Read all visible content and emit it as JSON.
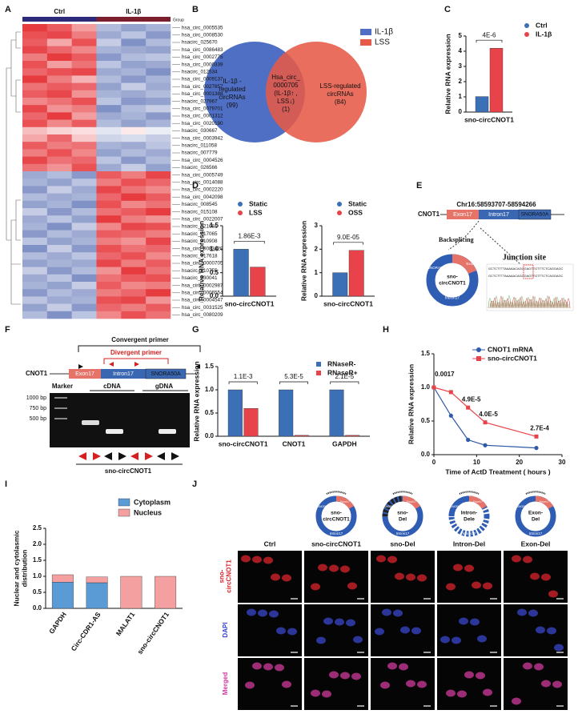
{
  "panel_labels": [
    "A",
    "B",
    "C",
    "D",
    "E",
    "F",
    "G",
    "H",
    "I",
    "J"
  ],
  "chart_data": [
    {
      "type": "heatmap",
      "groups": [
        "Ctrl",
        "IL-1β"
      ],
      "group_label": "Group",
      "group_colors": [
        "#2d2a7a",
        "#7a1f2b"
      ],
      "zlim": [
        -2,
        2
      ],
      "colors": [
        "#3c55a5",
        "#ffffff",
        "#e3262b"
      ],
      "rows": [
        "hsa_circ_0005535",
        "hsa_circ_0008530",
        "hsacirc_025670",
        "hsa_circ_0086483",
        "hsa_circ_0002775",
        "hsa_circ_0000339",
        "hsacirc_012534",
        "hsa_circ_0009137",
        "hsa_circ_0027857",
        "hsa_circ_0001388",
        "hsacirc_027967",
        "hsa_circ_0079701",
        "hsa_circ_0001312",
        "hsa_circ_0020190",
        "hsacirc_030667",
        "hsa_circ_0003942",
        "hsacirc_011058",
        "hsacirc_007779",
        "hsa_circ_0004526",
        "hsacirc_026566",
        "hsa_circ_0005749",
        "hsa_circ_0014088",
        "hsa_circ_0002220",
        "hsa_circ_0042098",
        "hsacirc_008545",
        "hsacirc_015108",
        "hsa_circ_0022007",
        "hsacirc_021681",
        "hsacirc_017065",
        "hsacirc_010908",
        "hsa_circ_0083429",
        "hsacirc_017618",
        "hsa_circ_0000705",
        "hsacirc_010755",
        "hsacirc_030041",
        "hsa_circ_0002987",
        "hsa_circ_0006554",
        "hsa_circ_0004547",
        "hsa_circ_0031525",
        "hsa_circ_0080209"
      ],
      "values": [
        [
          1.8,
          1.5,
          0.9,
          -0.8,
          -1.1,
          -0.9
        ],
        [
          1.6,
          1.7,
          1.2,
          -1.0,
          -0.7,
          -1.2
        ],
        [
          1.5,
          0.8,
          1.6,
          -0.6,
          -1.3,
          -0.8
        ],
        [
          1.7,
          1.4,
          1.1,
          -0.9,
          -1.0,
          -1.1
        ],
        [
          1.2,
          1.8,
          1.5,
          -1.2,
          -0.8,
          -0.7
        ],
        [
          1.6,
          0.9,
          1.3,
          -0.7,
          -1.1,
          -1.0
        ],
        [
          1.4,
          1.6,
          1.7,
          -1.0,
          -0.9,
          -1.3
        ],
        [
          1.8,
          1.2,
          0.7,
          -0.8,
          -1.2,
          -0.9
        ],
        [
          1.3,
          1.5,
          1.4,
          -1.1,
          -0.6,
          -1.0
        ],
        [
          1.5,
          1.7,
          1.0,
          -0.9,
          -1.0,
          -0.8
        ],
        [
          1.1,
          1.3,
          1.6,
          -0.7,
          -1.2,
          -1.1
        ],
        [
          1.7,
          1.0,
          1.2,
          -1.3,
          -0.8,
          -0.6
        ],
        [
          1.4,
          1.8,
          0.9,
          -1.0,
          -0.9,
          -1.2
        ],
        [
          1.6,
          1.1,
          1.5,
          -0.8,
          -1.1,
          -0.9
        ],
        [
          0.6,
          0.4,
          0.3,
          -0.3,
          0.2,
          -0.2
        ],
        [
          0.8,
          1.4,
          0.5,
          -0.5,
          -0.4,
          -0.6
        ],
        [
          1.5,
          1.2,
          1.3,
          -0.9,
          -1.0,
          -0.7
        ],
        [
          1.2,
          1.6,
          1.1,
          -1.1,
          -0.8,
          -1.0
        ],
        [
          1.7,
          1.3,
          1.4,
          -0.7,
          -1.2,
          -0.8
        ],
        [
          1.3,
          1.0,
          1.6,
          -1.0,
          -0.6,
          -1.1
        ],
        [
          -1.0,
          -0.8,
          -1.2,
          1.5,
          1.2,
          1.7
        ],
        [
          -0.9,
          -1.1,
          -0.7,
          1.2,
          1.6,
          1.4
        ],
        [
          -1.2,
          -0.6,
          -1.0,
          1.7,
          1.3,
          1.1
        ],
        [
          -0.8,
          -1.0,
          -0.9,
          1.4,
          1.8,
          1.5
        ],
        [
          -1.1,
          -0.9,
          -1.3,
          1.6,
          1.1,
          1.3
        ],
        [
          -0.6,
          -1.2,
          -0.8,
          1.3,
          1.5,
          1.8
        ],
        [
          -1.0,
          -0.7,
          -1.1,
          1.8,
          1.2,
          1.0
        ],
        [
          -0.9,
          -1.3,
          -0.6,
          1.1,
          1.7,
          1.6
        ],
        [
          -1.2,
          -0.8,
          -1.0,
          1.5,
          1.4,
          1.2
        ],
        [
          -0.7,
          -1.1,
          -0.9,
          1.2,
          1.0,
          1.7
        ],
        [
          -1.3,
          -0.6,
          -1.2,
          1.6,
          1.3,
          1.4
        ],
        [
          -0.8,
          -1.0,
          -0.7,
          1.4,
          1.6,
          1.1
        ],
        [
          -1.1,
          -0.9,
          -1.0,
          1.7,
          1.2,
          1.5
        ],
        [
          -0.6,
          -1.2,
          -0.8,
          1.0,
          1.8,
          1.3
        ],
        [
          -1.0,
          -0.7,
          -1.3,
          1.3,
          1.5,
          1.6
        ],
        [
          -0.9,
          -1.1,
          -0.6,
          1.5,
          1.1,
          1.2
        ],
        [
          -1.2,
          -0.8,
          -1.0,
          1.2,
          1.4,
          1.8
        ],
        [
          -0.7,
          -1.0,
          -0.9,
          1.6,
          1.7,
          1.0
        ],
        [
          -1.1,
          -0.6,
          -1.2,
          1.4,
          1.2,
          1.5
        ],
        [
          -0.8,
          -1.3,
          -0.7,
          1.1,
          1.6,
          1.3
        ]
      ]
    },
    {
      "type": "bar",
      "categories": [
        "sno-circCNOT1"
      ],
      "series": [
        {
          "name": "Ctrl",
          "color": "#3b6fb6",
          "values": [
            1.02
          ]
        },
        {
          "name": "IL-1β",
          "color": "#e8434a",
          "values": [
            4.2
          ]
        }
      ],
      "ylabel": "Relative RNA expression",
      "ylim": [
        0,
        5
      ],
      "yticks": [
        0,
        1,
        2,
        3,
        4,
        5
      ],
      "annotations": [
        "4E-6"
      ]
    },
    {
      "type": "bar",
      "categories": [
        "sno-circCNOT1"
      ],
      "series": [
        {
          "name": "Static",
          "color": "#3b6fb6",
          "values": [
            1.0
          ]
        },
        {
          "name": "LSS",
          "color": "#e8434a",
          "values": [
            0.62
          ]
        }
      ],
      "ylabel": "Relative RNA expression",
      "ylim": [
        0,
        1.5
      ],
      "yticks": [
        {
          "value": 0,
          "label": "0.0"
        },
        0.5,
        {
          "value": 1,
          "label": "1.0"
        },
        1.5
      ],
      "annotations": [
        "1.86E-3"
      ]
    },
    {
      "type": "bar",
      "categories": [
        "sno-circCNOT1"
      ],
      "series": [
        {
          "name": "Static",
          "color": "#3b6fb6",
          "values": [
            1.0
          ]
        },
        {
          "name": "OSS",
          "color": "#e8434a",
          "values": [
            1.95
          ]
        }
      ],
      "ylabel": "Relative RNA expression",
      "ylim": [
        0,
        3
      ],
      "yticks": [
        0,
        1,
        2,
        3
      ],
      "annotations": [
        "9.0E-05"
      ]
    },
    {
      "type": "bar",
      "categories": [
        "sno-circCNOT1",
        "CNOT1",
        "GAPDH"
      ],
      "series": [
        {
          "name": "RNaseR-",
          "color": "#3b6fb6",
          "values": [
            1.0,
            1.0,
            1.0
          ]
        },
        {
          "name": "RNaseR+",
          "color": "#e8434a",
          "values": [
            0.6,
            0.02,
            0.02
          ]
        }
      ],
      "ylabel": "Relative RNA expression",
      "ylim": [
        0,
        1.5
      ],
      "yticks": [
        {
          "value": 0,
          "label": "0.0"
        },
        0.5,
        {
          "value": 1,
          "label": "1.0"
        },
        1.5
      ],
      "annotations": [
        "1.1E-3",
        "5.3E-5",
        "2.1E-5"
      ]
    },
    {
      "type": "line",
      "x": [
        0,
        4,
        8,
        12,
        24
      ],
      "series": [
        {
          "name": "CNOT1 mRNA",
          "color": "#2e5aa8",
          "marker": "circle",
          "values": [
            1.0,
            0.58,
            0.22,
            0.14,
            0.1
          ]
        },
        {
          "name": "sno-circCNOT1",
          "color": "#e8434a",
          "marker": "square",
          "values": [
            1.0,
            0.93,
            0.7,
            0.48,
            0.27
          ]
        }
      ],
      "point_labels": [
        null,
        "0.0017",
        "4.9E-5",
        "4.0E-5",
        "2.7E-4"
      ],
      "xlabel": "Time of ActD Treatment ( hours )",
      "ylabel": "Relative RNA expression",
      "xlim": [
        0,
        30
      ],
      "xticks": [
        0,
        10,
        20,
        30
      ],
      "ylim": [
        0,
        1.5
      ],
      "yticks": [
        {
          "value": 0,
          "label": "0.0"
        },
        0.5,
        {
          "value": 1,
          "label": "1.0"
        },
        1.5
      ]
    },
    {
      "type": "stacked_bar",
      "categories": [
        "GAPDH",
        "Circ-CDR1-AS",
        "MALAT1",
        "sno-circCNOT1"
      ],
      "series": [
        {
          "name": "Cytoplasm",
          "color": "#5b9bd5",
          "values": [
            0.82,
            0.8,
            0,
            0
          ]
        },
        {
          "name": "Nucleus",
          "color": "#f4a0a0",
          "values": [
            0.23,
            0.18,
            1.0,
            1.0
          ]
        }
      ],
      "ylabel_lines": [
        "Nuclear and cytolasmic",
        "distribution"
      ],
      "ylim": [
        0,
        2.5
      ],
      "yticks": [
        {
          "value": 0,
          "label": "0.0"
        },
        0.5,
        {
          "value": 1,
          "label": "1.0"
        },
        1.5,
        {
          "value": 2,
          "label": "2.0"
        },
        2.5
      ]
    }
  ],
  "venn": {
    "legend": [
      "IL-1β",
      "LSS"
    ],
    "left": [
      "IL-1β -",
      "regulated",
      "circRNAs",
      "(99)"
    ],
    "center": [
      "Hsa_circ_",
      "0000705",
      "(IL-1β↑ ,",
      "LSS↓)",
      "(1)"
    ],
    "right": [
      "LSS-regulated",
      "circRNAs",
      "(84)"
    ]
  },
  "panel_e": {
    "gene": "CNOT1",
    "coords": "Chr16:58593707-58594266",
    "exon": "Exon17",
    "intron": "Intron17",
    "sno": "SNORA50A",
    "backsplicing": "Backsplicing",
    "junction": "Junction site",
    "circle": [
      "sno-",
      "circCNOT1"
    ],
    "sequence": [
      "GCTCTTTTAAAAACAGGGAGTTGTTTCTCAGGAGC",
      "GCTCTTTTAAAAACAGGGAGTTGTTTCTCAGGAGC"
    ]
  },
  "panel_f": {
    "convergent": "Convergent primer",
    "divergent": "Divergent primer",
    "gene": "CNOT1",
    "exon": "Exon17",
    "intron": "Intron17",
    "sno": "SNORA50A",
    "lanes": [
      "Marker",
      "cDNA",
      "gDNA"
    ],
    "markers": [
      "1000 bp",
      "750 bp",
      "500 bp"
    ],
    "product": "sno-circCNOT1"
  },
  "panel_j": {
    "constructs": [
      [
        "sno-",
        "circCNOT1"
      ],
      [
        "sno-",
        "Del"
      ],
      [
        "Intron-",
        "Dele"
      ],
      [
        "Exon-",
        "Del"
      ]
    ],
    "construct_parts": [
      "SNORA50A",
      "Exon17",
      "Intron17"
    ],
    "columns": [
      "Ctrl",
      "sno-circCNOT1",
      "sno-Del",
      "Intron-Del",
      "Exon-Del"
    ],
    "rows": [
      [
        "sno-",
        "circCNOT1"
      ],
      [
        "DAPI"
      ],
      [
        "Merged"
      ]
    ]
  }
}
